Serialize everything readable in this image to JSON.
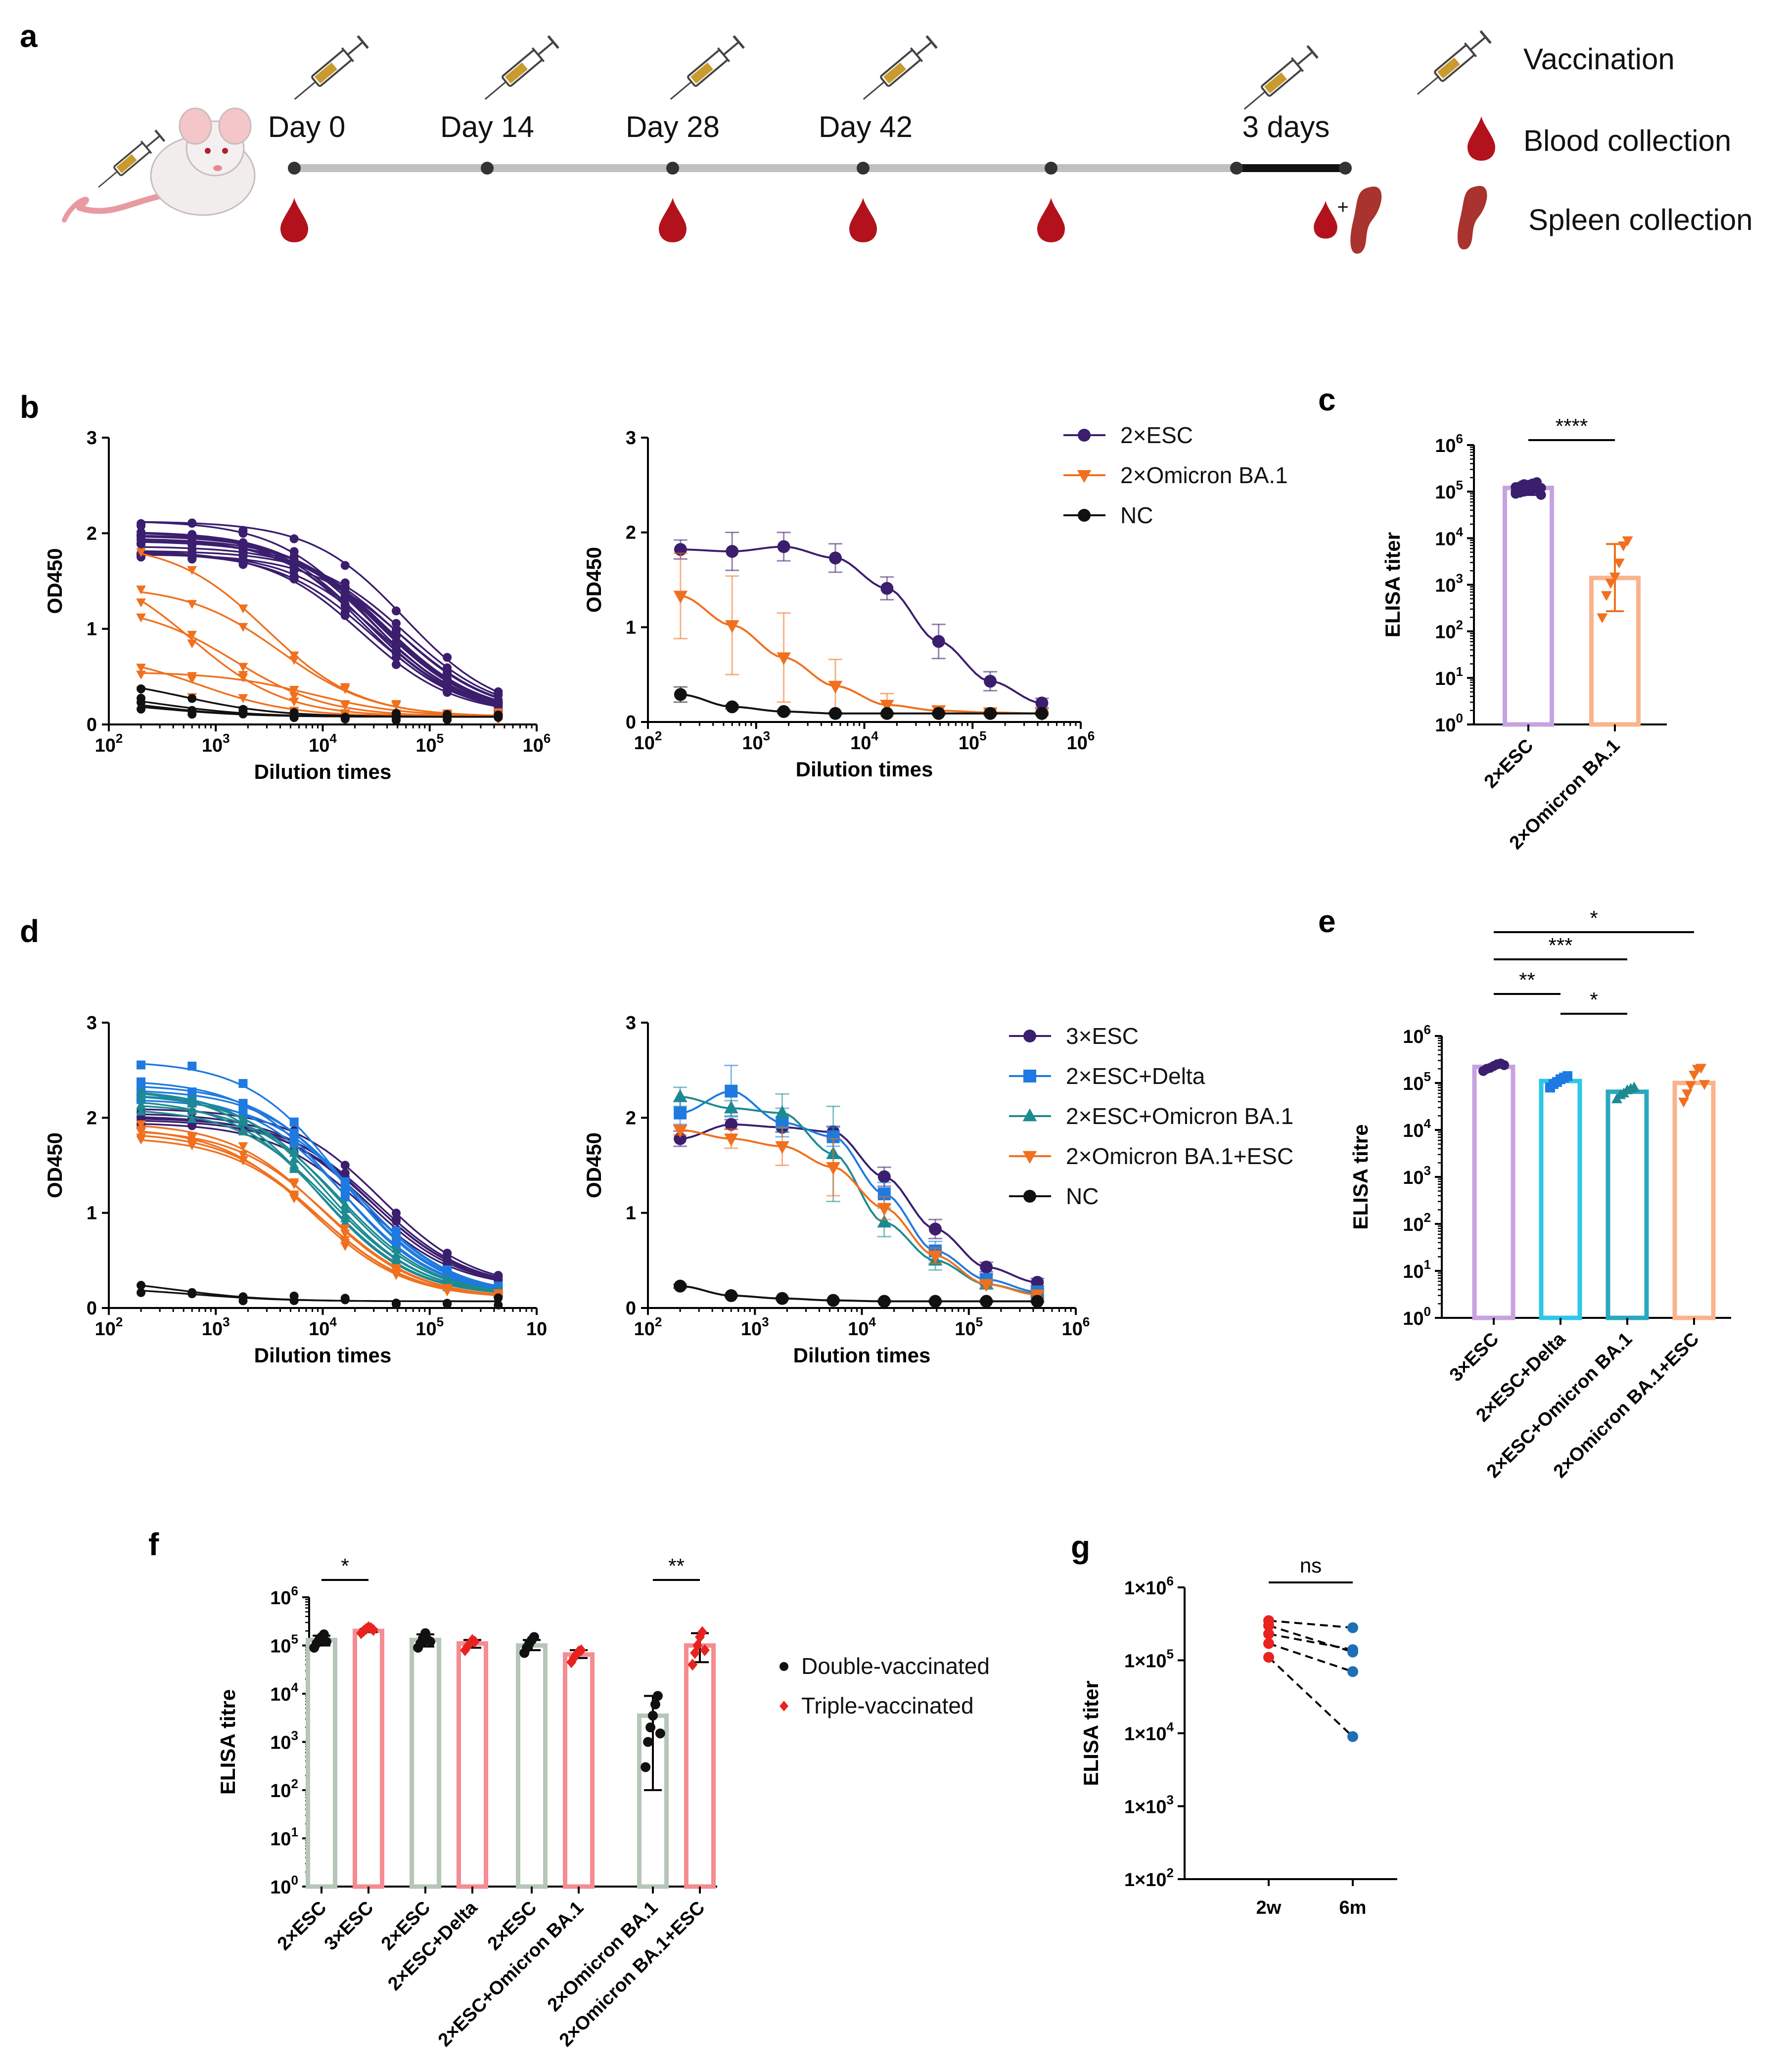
{
  "figure": {
    "panel_labels": [
      "a",
      "b",
      "c",
      "d",
      "e",
      "f",
      "g"
    ]
  },
  "timeline": {
    "days": [
      "Day 0",
      "Day 14",
      "Day 28",
      "Day 42"
    ],
    "end_label": "3 days",
    "plus": "+",
    "legend": [
      "Vaccination",
      "Blood collection",
      "Spleen collection"
    ],
    "colors": {
      "line": "#c0c0c0",
      "blood": "#b3121c",
      "spleen": "#a8332f",
      "syringe": "#c99a2e"
    }
  },
  "colors": {
    "esc": "#3b1e6e",
    "omicron": "#f0701e",
    "nc": "#111111",
    "delta": "#1e7ae0",
    "teal": "#1d8a92",
    "purple_bar": "#c7a2e0",
    "orange_bar": "#f8b48c",
    "cyan_bar": "#2ec7e8",
    "teal_bar": "#2aa8c0",
    "grey_bar": "#b6c6b9",
    "red_bar": "#f48c91",
    "red": "#e8231f"
  },
  "chart_data": [
    {
      "panel": "b-left",
      "type": "line",
      "xscale": "log",
      "xlim": [
        100,
        1000000
      ],
      "ylim": [
        0,
        3
      ],
      "xlabel": "Dilution times",
      "ylabel": "OD450",
      "yticks": [
        "0",
        "1",
        "2",
        "3"
      ],
      "xticks": [
        "10",
        "10",
        "10",
        "10",
        "10"
      ],
      "xtick_exps": [
        "2",
        "3",
        "4",
        "5",
        "6"
      ],
      "dilutions": [
        200,
        600,
        1800,
        5400,
        16200,
        48600,
        145800,
        437400
      ],
      "series": [
        {
          "name": "2×ESC",
          "n": 17,
          "top_range": [
            1.75,
            2.15
          ],
          "ec50_range": [
            22000,
            60000
          ],
          "bottom": 0.1
        },
        {
          "name": "2×Omicron BA.1",
          "curves": [
            {
              "top": 1.45,
              "ec50": 4000
            },
            {
              "top": 1.25,
              "ec50": 1500
            },
            {
              "top": 1.9,
              "ec50": 3000
            },
            {
              "top": 0.75,
              "ec50": 700
            },
            {
              "top": 1.7,
              "ec50": 600
            },
            {
              "top": 0.5,
              "ec50": 500
            },
            {
              "top": 0.55,
              "ec50": 8000
            }
          ],
          "bottom": 0.08
        },
        {
          "name": "NC",
          "curves": [
            {
              "top": 0.5,
              "ec50": 500
            },
            {
              "top": 0.35,
              "ec50": 300
            },
            {
              "top": 0.3,
              "ec50": 250
            },
            {
              "top": 0.25,
              "ec50": 300
            }
          ],
          "bottom": 0.08
        }
      ]
    },
    {
      "panel": "b-right",
      "type": "line",
      "xscale": "log",
      "xlim": [
        100,
        1000000
      ],
      "ylim": [
        0,
        3
      ],
      "xlabel": "Dilution times",
      "ylabel": "OD450",
      "yticks": [
        "0",
        "1",
        "2",
        "3"
      ],
      "xticks": [
        "10",
        "10",
        "10",
        "10",
        "10"
      ],
      "xtick_exps": [
        "2",
        "3",
        "4",
        "5",
        "6"
      ],
      "dilutions": [
        200,
        600,
        1800,
        5400,
        16200,
        48600,
        145800,
        437400
      ],
      "series": [
        {
          "name": "2×ESC",
          "values": [
            1.82,
            1.8,
            1.85,
            1.73,
            1.41,
            0.85,
            0.43,
            0.2
          ],
          "errors": [
            0.1,
            0.2,
            0.15,
            0.15,
            0.12,
            0.18,
            0.1,
            0.05
          ]
        },
        {
          "name": "2×Omicron BA.1",
          "values": [
            1.33,
            1.02,
            0.68,
            0.38,
            0.18,
            0.12,
            0.1,
            0.09
          ],
          "errors": [
            0.45,
            0.52,
            0.47,
            0.28,
            0.12,
            0.05,
            0.03,
            0.02
          ]
        },
        {
          "name": "NC",
          "values": [
            0.29,
            0.16,
            0.11,
            0.09,
            0.09,
            0.09,
            0.09,
            0.09
          ],
          "errors": [
            0.08,
            0.02,
            0.02,
            0.01,
            0.01,
            0.01,
            0.01,
            0.01
          ]
        }
      ]
    },
    {
      "panel": "c",
      "type": "bar",
      "yscale": "log",
      "ylim": [
        1,
        1000000
      ],
      "ylabel": "ELISA titer",
      "categories": [
        "2×ESC",
        "2×Omicron BA.1"
      ],
      "values": [
        120000,
        1400
      ],
      "errors": [
        [
          85000,
          165000
        ],
        [
          270,
          7500
        ]
      ],
      "points": [
        [
          90000,
          95000,
          100000,
          105000,
          110000,
          115000,
          120000,
          125000,
          130000,
          135000,
          140000,
          150000,
          160000,
          85000,
          100000,
          118000,
          145000
        ],
        [
          200,
          600,
          1100,
          1500,
          3000,
          7000,
          9000
        ]
      ],
      "significance": [
        {
          "pair": [
            0,
            1
          ],
          "label": "****"
        }
      ],
      "yticks": [
        "10",
        "10",
        "10",
        "10",
        "10",
        "10",
        "10"
      ],
      "ytick_exps": [
        "0",
        "1",
        "2",
        "3",
        "4",
        "5",
        "6"
      ]
    },
    {
      "panel": "d-left",
      "type": "line",
      "xscale": "log",
      "xlim": [
        100,
        1000000
      ],
      "ylim": [
        0,
        3
      ],
      "xlabel": "Dilution times",
      "ylabel": "OD450",
      "yticks": [
        "0",
        "1",
        "2",
        "3"
      ],
      "xticks": [
        "10",
        "10",
        "10",
        "10",
        "10"
      ],
      "xtick_exps": [
        "2",
        "3",
        "4",
        "5",
        ""
      ],
      "dilutions": [
        200,
        600,
        1800,
        5400,
        16200,
        48600,
        145800,
        437400
      ],
      "series": [
        {
          "name": "3×ESC",
          "curves": [
            {
              "top": 2.05,
              "ec50": 28000
            },
            {
              "top": 2.0,
              "ec50": 32000
            },
            {
              "top": 1.95,
              "ec50": 24000
            },
            {
              "top": 2.1,
              "ec50": 35000
            },
            {
              "top": 1.98,
              "ec50": 30000
            },
            {
              "top": 2.02,
              "ec50": 26000
            }
          ],
          "bottom": 0.2
        },
        {
          "name": "2×ESC+Delta",
          "curves": [
            {
              "top": 2.6,
              "ec50": 15000
            },
            {
              "top": 2.35,
              "ec50": 18000
            },
            {
              "top": 2.3,
              "ec50": 20000
            },
            {
              "top": 2.25,
              "ec50": 16000
            },
            {
              "top": 2.2,
              "ec50": 22000
            },
            {
              "top": 2.4,
              "ec50": 14000
            }
          ],
          "bottom": 0.13
        },
        {
          "name": "2×ESC+Omicron BA.1",
          "curves": [
            {
              "top": 2.3,
              "ec50": 11000
            },
            {
              "top": 2.25,
              "ec50": 13000
            },
            {
              "top": 2.2,
              "ec50": 10000
            },
            {
              "top": 2.15,
              "ec50": 15000
            },
            {
              "top": 2.3,
              "ec50": 9000
            },
            {
              "top": 2.1,
              "ec50": 12000
            }
          ],
          "bottom": 0.12
        },
        {
          "name": "2×Omicron BA.1+ESC",
          "curves": [
            {
              "top": 1.9,
              "ec50": 8000
            },
            {
              "top": 1.85,
              "ec50": 9000
            },
            {
              "top": 1.95,
              "ec50": 10000
            },
            {
              "top": 1.8,
              "ec50": 9500
            },
            {
              "top": 1.88,
              "ec50": 11000
            }
          ],
          "bottom": 0.1
        },
        {
          "name": "NC",
          "curves": [
            {
              "top": 0.32,
              "ec50": 400
            },
            {
              "top": 0.22,
              "ec50": 600
            }
          ],
          "bottom": 0.07
        }
      ]
    },
    {
      "panel": "d-right",
      "type": "line",
      "xscale": "log",
      "xlim": [
        100,
        1000000
      ],
      "ylim": [
        0,
        3
      ],
      "xlabel": "Dilution times",
      "ylabel": "OD450",
      "yticks": [
        "0",
        "1",
        "2",
        "3"
      ],
      "xticks": [
        "10",
        "10",
        "10",
        "10",
        "10"
      ],
      "xtick_exps": [
        "2",
        "3",
        "4",
        "5",
        "6"
      ],
      "dilutions": [
        200,
        600,
        1800,
        5400,
        16200,
        48600,
        145800,
        437400
      ],
      "series": [
        {
          "name": "3×ESC",
          "values": [
            1.78,
            1.93,
            1.9,
            1.85,
            1.38,
            0.83,
            0.43,
            0.27
          ],
          "errors": [
            0.08,
            0.05,
            0.05,
            0.06,
            0.1,
            0.1,
            0.05,
            0.04
          ]
        },
        {
          "name": "2×ESC+Delta",
          "values": [
            2.05,
            2.28,
            1.95,
            1.8,
            1.2,
            0.6,
            0.3,
            0.17
          ],
          "errors": [
            0.12,
            0.27,
            0.15,
            0.1,
            0.12,
            0.1,
            0.05,
            0.03
          ]
        },
        {
          "name": "2×ESC+Omicron BA.1",
          "values": [
            2.22,
            2.1,
            2.05,
            1.62,
            0.9,
            0.5,
            0.25,
            0.15
          ],
          "errors": [
            0.1,
            0.08,
            0.2,
            0.5,
            0.15,
            0.1,
            0.05,
            0.03
          ]
        },
        {
          "name": "2×Omicron BA.1+ESC",
          "values": [
            1.87,
            1.78,
            1.7,
            1.48,
            1.05,
            0.55,
            0.25,
            0.14
          ],
          "errors": [
            0.05,
            0.1,
            0.2,
            0.3,
            0.12,
            0.08,
            0.04,
            0.03
          ]
        },
        {
          "name": "NC",
          "values": [
            0.23,
            0.13,
            0.1,
            0.08,
            0.07,
            0.07,
            0.07,
            0.07
          ],
          "errors": [
            0.02,
            0.01,
            0.01,
            0.01,
            0.01,
            0.01,
            0.01,
            0.01
          ]
        }
      ]
    },
    {
      "panel": "e",
      "type": "bar",
      "yscale": "log",
      "ylim": [
        1,
        1000000
      ],
      "ylabel": "ELISA titre",
      "categories": [
        "3×ESC",
        "2×ESC+Delta",
        "2×ESC+Omicron BA.1",
        "2×Omicron BA.1+ESC"
      ],
      "values": [
        220000,
        110000,
        65000,
        100000
      ],
      "points": [
        [
          180000,
          200000,
          210000,
          230000,
          250000,
          260000,
          240000
        ],
        [
          80000,
          95000,
          105000,
          120000,
          130000,
          140000
        ],
        [
          45000,
          55000,
          60000,
          70000,
          75000,
          80000
        ],
        [
          40000,
          60000,
          90000,
          150000,
          200000,
          210000,
          95000
        ]
      ],
      "significance": [
        {
          "pair": [
            0,
            1
          ],
          "label": "**"
        },
        {
          "pair": [
            1,
            2
          ],
          "label": "*"
        },
        {
          "pair": [
            0,
            2
          ],
          "label": "***"
        },
        {
          "pair": [
            0,
            3
          ],
          "label": "*"
        }
      ],
      "yticks": [
        "10",
        "10",
        "10",
        "10",
        "10",
        "10",
        "10"
      ],
      "ytick_exps": [
        "0",
        "1",
        "2",
        "3",
        "4",
        "5",
        "6"
      ]
    },
    {
      "panel": "f",
      "type": "bar",
      "yscale": "log",
      "ylim": [
        1,
        1000000
      ],
      "ylabel": "ELISA titre",
      "categories": [
        "2×ESC",
        "3×ESC",
        "2×ESC",
        "2×ESC+Delta",
        "2×ESC",
        "2×ESC+Omicron BA.1",
        "2×Omicron BA.1",
        "2×Omicron BA.1+ESC"
      ],
      "values": [
        130000,
        200000,
        130000,
        110000,
        100000,
        65000,
        3500,
        100000
      ],
      "groups": [
        "Double-vaccinated",
        "Triple-vaccinated",
        "Double-vaccinated",
        "Triple-vaccinated",
        "Double-vaccinated",
        "Triple-vaccinated",
        "Double-vaccinated",
        "Triple-vaccinated"
      ],
      "points": [
        [
          90000,
          110000,
          130000,
          150000,
          170000,
          120000
        ],
        [
          180000,
          200000,
          220000,
          240000,
          230000,
          210000
        ],
        [
          90000,
          110000,
          140000,
          180000,
          130000,
          120000
        ],
        [
          80000,
          95000,
          110000,
          130000,
          120000
        ],
        [
          70000,
          90000,
          110000,
          130000,
          150000
        ],
        [
          45000,
          55000,
          65000,
          75000,
          80000
        ],
        [
          300,
          1000,
          2000,
          3500,
          6000,
          9000,
          1500
        ],
        [
          40000,
          70000,
          100000,
          150000,
          190000,
          80000
        ]
      ],
      "errors": [
        [
          100000,
          160000
        ],
        [
          190000,
          220000
        ],
        [
          95000,
          170000
        ],
        [
          90000,
          130000
        ],
        [
          80000,
          130000
        ],
        [
          55000,
          80000
        ],
        [
          100,
          9000
        ],
        [
          45000,
          180000
        ]
      ],
      "legend": [
        "Double-vaccinated",
        "Triple-vaccinated"
      ],
      "significance": [
        {
          "pair": [
            0,
            1
          ],
          "label": "*"
        },
        {
          "pair": [
            6,
            7
          ],
          "label": "**"
        }
      ],
      "yticks": [
        "10",
        "10",
        "10",
        "10",
        "10",
        "10",
        "10"
      ],
      "ytick_exps": [
        "0",
        "1",
        "2",
        "3",
        "4",
        "5",
        "6"
      ]
    },
    {
      "panel": "g",
      "type": "scatter",
      "yscale": "log",
      "ylim": [
        100,
        1000000
      ],
      "ylabel": "ELISA titer",
      "categories": [
        "2w",
        "6m"
      ],
      "pairs": [
        [
          350000,
          280000
        ],
        [
          300000,
          130000
        ],
        [
          230000,
          140000
        ],
        [
          170000,
          70000
        ],
        [
          110000,
          9000
        ]
      ],
      "significance": [
        {
          "pair": [
            0,
            1
          ],
          "label": "ns"
        }
      ],
      "yticks": [
        "1×10",
        "1×10",
        "1×10",
        "1×10",
        "1×10"
      ],
      "ytick_exps": [
        "2",
        "3",
        "4",
        "5",
        "6"
      ]
    }
  ]
}
